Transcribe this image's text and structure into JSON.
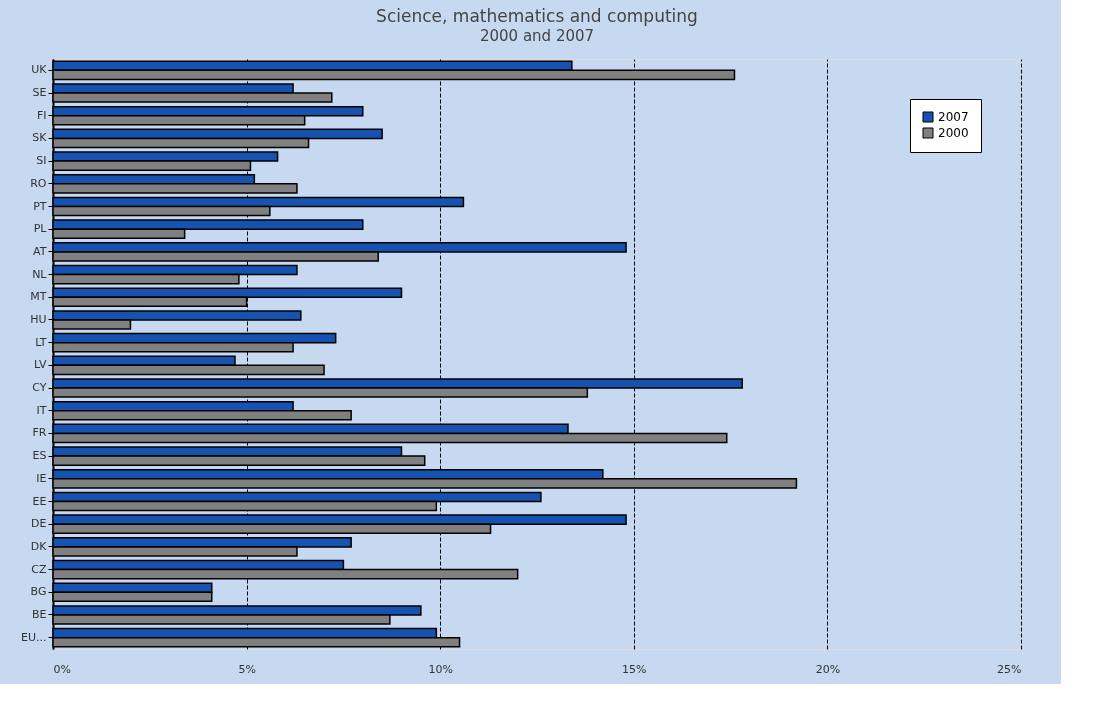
{
  "chart_data": {
    "type": "bar",
    "orientation": "horizontal",
    "title": "Science, mathematics and computing",
    "annotations": [
      "2000 and 2007"
    ],
    "categories": [
      "UK",
      "SE",
      "FI",
      "SK",
      "SI",
      "RO",
      "PT",
      "PL",
      "AT",
      "NL",
      "MT",
      "HU",
      "LT",
      "LV",
      "CY",
      "IT",
      "FR",
      "ES",
      "IE",
      "EE",
      "DE",
      "DK",
      "CZ",
      "BG",
      "BE",
      "EU..."
    ],
    "series": [
      {
        "name": "2007",
        "color": "#1652b0",
        "values": [
          13.4,
          6.2,
          8.0,
          8.5,
          5.8,
          5.2,
          10.6,
          8.0,
          14.8,
          6.3,
          9.0,
          6.4,
          7.3,
          4.7,
          17.8,
          6.2,
          13.3,
          9.0,
          14.2,
          12.6,
          14.8,
          7.7,
          7.5,
          4.1,
          9.5,
          9.9
        ]
      },
      {
        "name": "2000",
        "color": "#808080",
        "values": [
          17.6,
          7.2,
          6.5,
          6.6,
          5.1,
          6.3,
          5.6,
          3.4,
          8.4,
          4.8,
          5.0,
          2.0,
          6.2,
          7.0,
          13.8,
          7.7,
          17.4,
          9.6,
          19.2,
          9.9,
          11.3,
          6.3,
          12.0,
          4.1,
          8.7,
          10.5
        ]
      }
    ],
    "xlim": [
      0,
      25
    ],
    "xticks": [
      {
        "value": 0,
        "label": "0%"
      },
      {
        "value": 5,
        "label": "5%"
      },
      {
        "value": 10,
        "label": "10%"
      },
      {
        "value": 15,
        "label": "15%"
      },
      {
        "value": 20,
        "label": "20%"
      },
      {
        "value": 25,
        "label": "25%"
      }
    ],
    "grid": "x",
    "legend": "top right"
  }
}
